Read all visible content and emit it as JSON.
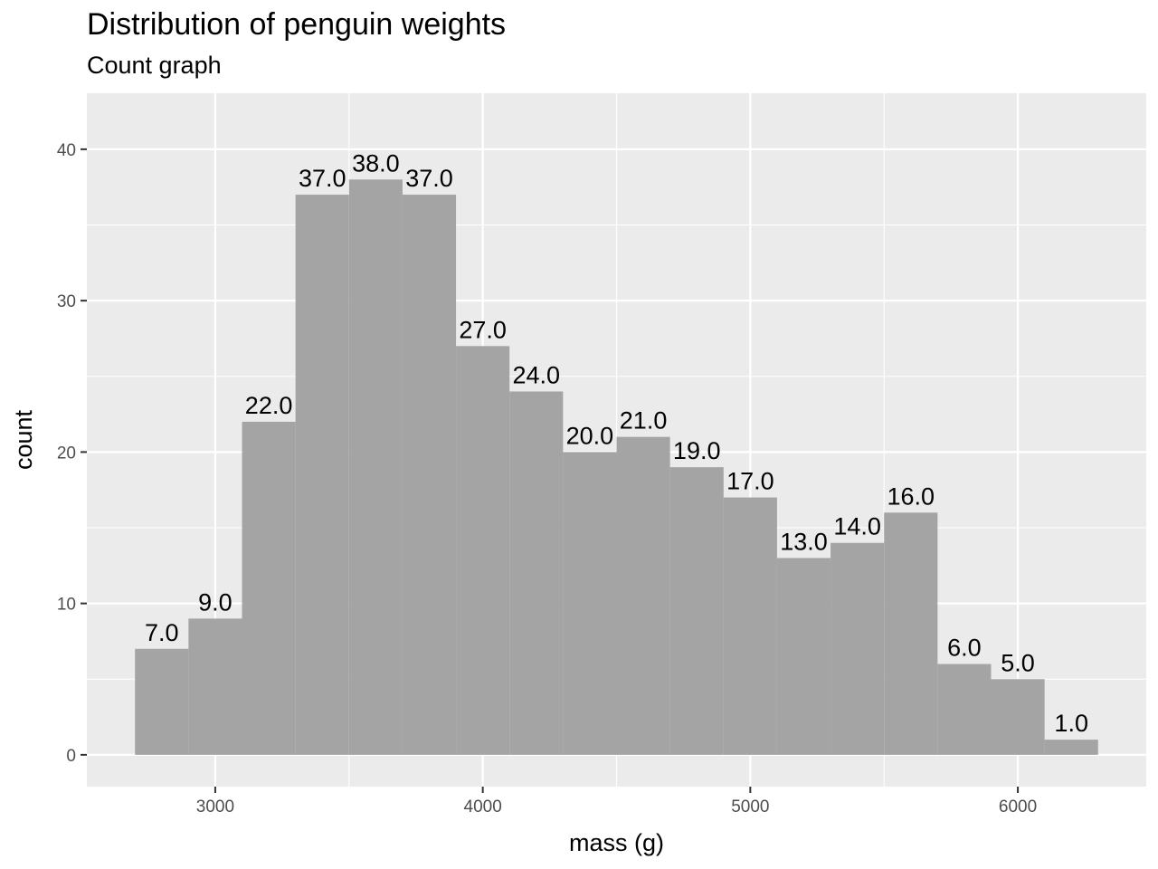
{
  "title": "Distribution of penguin weights",
  "subtitle": "Count graph",
  "chart_data": {
    "type": "bar",
    "title": "Distribution of penguin weights",
    "subtitle": "Count graph",
    "xlabel": "mass (g)",
    "ylabel": "count",
    "xlim": [
      2520,
      6480
    ],
    "ylim": [
      -2.1,
      43.7
    ],
    "x_ticks": [
      3000,
      4000,
      5000,
      6000
    ],
    "y_ticks": [
      0,
      10,
      20,
      30,
      40
    ],
    "x_tick_labels": [
      "3000",
      "4000",
      "5000",
      "6000"
    ],
    "y_tick_labels": [
      "0",
      "10",
      "20",
      "30",
      "40"
    ],
    "bin_width": 200,
    "bin_centers": [
      2800,
      3000,
      3200,
      3400,
      3600,
      3800,
      4000,
      4200,
      4400,
      4600,
      4800,
      5000,
      5200,
      5400,
      5600,
      5800,
      6000,
      6200
    ],
    "values": [
      7,
      9,
      22,
      37,
      38,
      37,
      27,
      24,
      20,
      21,
      19,
      17,
      13,
      14,
      16,
      6,
      5,
      1
    ],
    "labels": [
      "7.0",
      "9.0",
      "22.0",
      "37.0",
      "38.0",
      "37.0",
      "27.0",
      "24.0",
      "20.0",
      "21.0",
      "19.0",
      "17.0",
      "13.0",
      "14.0",
      "16.0",
      "6.0",
      "5.0",
      "1.0"
    ],
    "grid": true,
    "colors": {
      "panel": "#ebebeb",
      "grid": "#ffffff",
      "bar": "#a0a0a0",
      "tick_text": "#4d4d4d"
    }
  }
}
